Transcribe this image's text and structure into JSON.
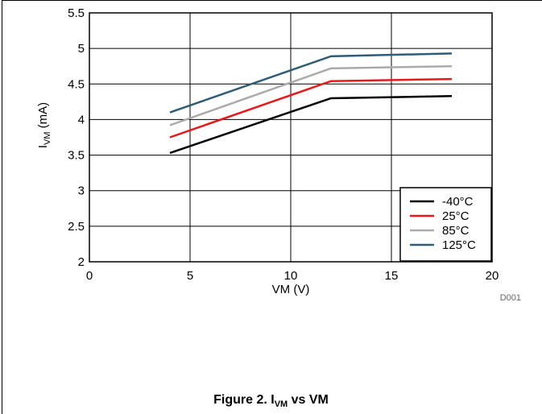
{
  "figure": {
    "caption_prefix": "Figure 2. I",
    "caption_sub": "VM",
    "caption_suffix": " vs VM",
    "code": "D001"
  },
  "chart_data": {
    "type": "line",
    "xlabel": "VM (V)",
    "ylabel_main": "I",
    "ylabel_sub": "VM",
    "ylabel_unit": " (mA)",
    "xlim": [
      0,
      20
    ],
    "ylim": [
      2,
      5.5
    ],
    "xticks": [
      0,
      5,
      10,
      15,
      20
    ],
    "yticks": [
      2,
      2.5,
      3,
      3.5,
      4,
      4.5,
      5,
      5.5
    ],
    "grid": true,
    "legend_position": "bottom-right",
    "x": [
      4,
      12,
      18
    ],
    "series": [
      {
        "name": "-40°C",
        "color": "#000000",
        "values": [
          3.53,
          4.3,
          4.33
        ]
      },
      {
        "name": "25°C",
        "color": "#e8191a",
        "values": [
          3.75,
          4.54,
          4.57
        ]
      },
      {
        "name": "85°C",
        "color": "#aaaaaa",
        "values": [
          3.92,
          4.72,
          4.75
        ]
      },
      {
        "name": "125°C",
        "color": "#2e5d7a",
        "values": [
          4.1,
          4.89,
          4.93
        ]
      }
    ]
  }
}
